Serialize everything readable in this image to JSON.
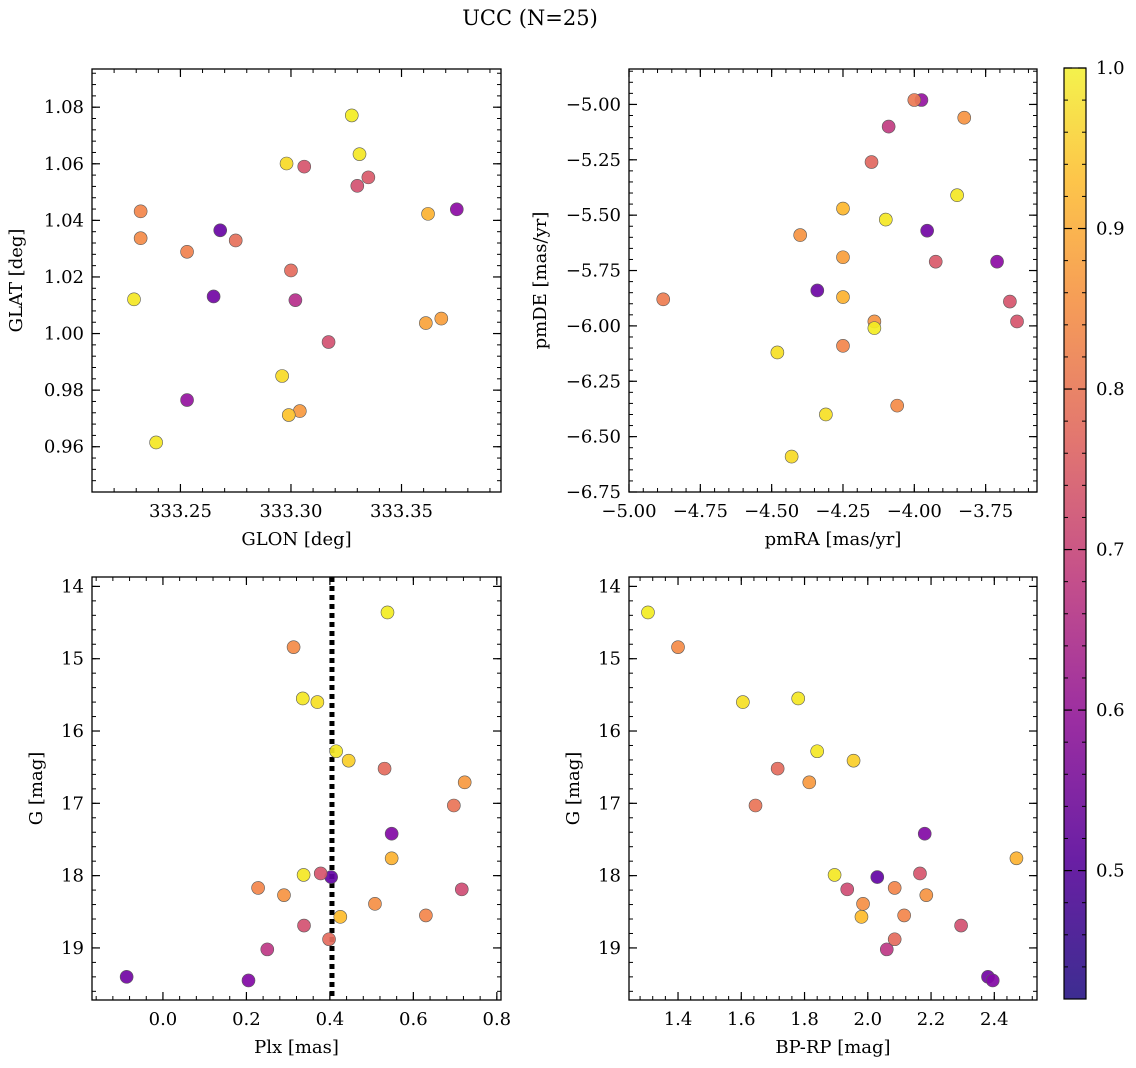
{
  "figure": {
    "title": "UCC (N=25)"
  },
  "colorbar": {
    "cmap": "plasma",
    "vmin": 0.42,
    "vmax": 1.0,
    "ticks": [
      0.5,
      0.6,
      0.7,
      0.8,
      0.9,
      1.0
    ],
    "tick_labels": [
      "0.5",
      "0.6",
      "0.7",
      "0.8",
      "0.9",
      "1.0"
    ]
  },
  "chart_data": [
    {
      "type": "scatter",
      "id": "radec",
      "xlabel": "GLON [deg]",
      "ylabel": "GLAT [deg]",
      "xlim": [
        333.21,
        333.395
      ],
      "ylim": [
        0.944,
        1.0935
      ],
      "xticks": [
        333.25,
        333.3,
        333.35
      ],
      "xtick_labels": [
        "333.25",
        "333.30",
        "333.35"
      ],
      "yticks": [
        0.96,
        0.98,
        1.0,
        1.02,
        1.04,
        1.06,
        1.08
      ],
      "ytick_labels": [
        "0.96",
        "0.98",
        "1.00",
        "1.02",
        "1.04",
        "1.06",
        "1.08"
      ],
      "points": [
        {
          "x": 333.3275,
          "y": 1.0771,
          "c": 0.98
        },
        {
          "x": 333.331,
          "y": 1.0634,
          "c": 0.97
        },
        {
          "x": 333.298,
          "y": 1.0601,
          "c": 0.95
        },
        {
          "x": 333.306,
          "y": 1.059,
          "c": 0.68
        },
        {
          "x": 333.335,
          "y": 1.0552,
          "c": 0.69
        },
        {
          "x": 333.33,
          "y": 1.0522,
          "c": 0.67
        },
        {
          "x": 333.375,
          "y": 1.0439,
          "c": 0.5
        },
        {
          "x": 333.232,
          "y": 1.0432,
          "c": 0.79
        },
        {
          "x": 333.362,
          "y": 1.0423,
          "c": 0.88
        },
        {
          "x": 333.268,
          "y": 1.0365,
          "c": 0.43
        },
        {
          "x": 333.232,
          "y": 1.0337,
          "c": 0.8
        },
        {
          "x": 333.275,
          "y": 1.0329,
          "c": 0.74
        },
        {
          "x": 333.253,
          "y": 1.0289,
          "c": 0.78
        },
        {
          "x": 333.3,
          "y": 1.0223,
          "c": 0.73
        },
        {
          "x": 333.265,
          "y": 1.0131,
          "c": 0.45
        },
        {
          "x": 333.229,
          "y": 1.0121,
          "c": 0.97
        },
        {
          "x": 333.302,
          "y": 1.0118,
          "c": 0.59
        },
        {
          "x": 333.368,
          "y": 1.0053,
          "c": 0.84
        },
        {
          "x": 333.361,
          "y": 1.0037,
          "c": 0.85
        },
        {
          "x": 333.317,
          "y": 0.997,
          "c": 0.67
        },
        {
          "x": 333.296,
          "y": 0.985,
          "c": 0.95
        },
        {
          "x": 333.253,
          "y": 0.9765,
          "c": 0.52
        },
        {
          "x": 333.304,
          "y": 0.9726,
          "c": 0.83
        },
        {
          "x": 333.299,
          "y": 0.9712,
          "c": 0.91
        },
        {
          "x": 333.239,
          "y": 0.9615,
          "c": 0.97
        }
      ]
    },
    {
      "type": "scatter",
      "id": "pm",
      "xlabel": "pmRA [mas/yr]",
      "ylabel": "pmDE [mas/yr]",
      "xlim": [
        -5.0,
        -3.57
      ],
      "ylim": [
        -6.75,
        -4.84
      ],
      "xticks": [
        -5.0,
        -4.75,
        -4.5,
        -4.25,
        -4.0,
        -3.75
      ],
      "xtick_labels": [
        "−5.00",
        "−4.75",
        "−4.50",
        "−4.25",
        "−4.00",
        "−3.75"
      ],
      "yticks": [
        -6.75,
        -6.5,
        -6.25,
        -6.0,
        -5.75,
        -5.5,
        -5.25,
        -5.0
      ],
      "ytick_labels": [
        "−6.75",
        "−6.50",
        "−6.25",
        "−6.00",
        "−5.75",
        "−5.50",
        "−5.25",
        "−5.00"
      ],
      "points": [
        {
          "x": -4.0,
          "y": -4.98,
          "c": 0.76
        },
        {
          "x": -3.975,
          "y": -4.98,
          "c": 0.52
        },
        {
          "x": -3.825,
          "y": -5.06,
          "c": 0.82
        },
        {
          "x": -4.09,
          "y": -5.1,
          "c": 0.62
        },
        {
          "x": -4.15,
          "y": -5.26,
          "c": 0.72
        },
        {
          "x": -3.85,
          "y": -5.41,
          "c": 0.97
        },
        {
          "x": -4.25,
          "y": -5.47,
          "c": 0.89
        },
        {
          "x": -4.1,
          "y": -5.52,
          "c": 0.97
        },
        {
          "x": -3.955,
          "y": -5.57,
          "c": 0.45
        },
        {
          "x": -4.4,
          "y": -5.59,
          "c": 0.82
        },
        {
          "x": -4.25,
          "y": -5.69,
          "c": 0.84
        },
        {
          "x": -3.925,
          "y": -5.71,
          "c": 0.69
        },
        {
          "x": -3.71,
          "y": -5.71,
          "c": 0.5
        },
        {
          "x": -4.34,
          "y": -5.84,
          "c": 0.44
        },
        {
          "x": -4.25,
          "y": -5.87,
          "c": 0.88
        },
        {
          "x": -4.88,
          "y": -5.88,
          "c": 0.77
        },
        {
          "x": -3.665,
          "y": -5.89,
          "c": 0.68
        },
        {
          "x": -3.64,
          "y": -5.98,
          "c": 0.68
        },
        {
          "x": -4.14,
          "y": -5.98,
          "c": 0.82
        },
        {
          "x": -4.14,
          "y": -6.01,
          "c": 0.98
        },
        {
          "x": -4.25,
          "y": -6.09,
          "c": 0.79
        },
        {
          "x": -4.48,
          "y": -6.12,
          "c": 0.96
        },
        {
          "x": -4.06,
          "y": -6.36,
          "c": 0.8
        },
        {
          "x": -4.31,
          "y": -6.4,
          "c": 0.96
        },
        {
          "x": -4.43,
          "y": -6.59,
          "c": 0.95
        }
      ]
    },
    {
      "type": "scatter",
      "id": "plx",
      "xlabel": "Plx [mas]",
      "ylabel": "G [mag]",
      "xlim": [
        -0.17,
        0.81
      ],
      "ylim": [
        19.72,
        13.87
      ],
      "y_inverted": true,
      "vline": 0.405,
      "xticks": [
        0.0,
        0.2,
        0.4,
        0.6,
        0.8
      ],
      "xtick_labels": [
        "0.0",
        "0.2",
        "0.4",
        "0.6",
        "0.8"
      ],
      "yticks": [
        14,
        15,
        16,
        17,
        18,
        19
      ],
      "ytick_labels": [
        "14",
        "15",
        "16",
        "17",
        "18",
        "19"
      ],
      "points": [
        {
          "x": 0.538,
          "y": 14.36,
          "c": 0.98
        },
        {
          "x": 0.313,
          "y": 14.84,
          "c": 0.8
        },
        {
          "x": 0.335,
          "y": 15.55,
          "c": 0.97
        },
        {
          "x": 0.37,
          "y": 15.6,
          "c": 0.96
        },
        {
          "x": 0.415,
          "y": 16.28,
          "c": 0.97
        },
        {
          "x": 0.445,
          "y": 16.41,
          "c": 0.93
        },
        {
          "x": 0.531,
          "y": 16.52,
          "c": 0.73
        },
        {
          "x": 0.723,
          "y": 16.71,
          "c": 0.83
        },
        {
          "x": 0.697,
          "y": 17.03,
          "c": 0.75
        },
        {
          "x": 0.548,
          "y": 17.42,
          "c": 0.48
        },
        {
          "x": 0.548,
          "y": 17.76,
          "c": 0.88
        },
        {
          "x": 0.337,
          "y": 17.99,
          "c": 0.97
        },
        {
          "x": 0.378,
          "y": 17.97,
          "c": 0.68
        },
        {
          "x": 0.403,
          "y": 18.02,
          "c": 0.42
        },
        {
          "x": 0.228,
          "y": 18.17,
          "c": 0.79
        },
        {
          "x": 0.716,
          "y": 18.19,
          "c": 0.66
        },
        {
          "x": 0.29,
          "y": 18.27,
          "c": 0.82
        },
        {
          "x": 0.508,
          "y": 18.39,
          "c": 0.81
        },
        {
          "x": 0.63,
          "y": 18.55,
          "c": 0.79
        },
        {
          "x": 0.425,
          "y": 18.57,
          "c": 0.9
        },
        {
          "x": 0.338,
          "y": 18.69,
          "c": 0.67
        },
        {
          "x": 0.398,
          "y": 18.88,
          "c": 0.73
        },
        {
          "x": 0.25,
          "y": 19.02,
          "c": 0.61
        },
        {
          "x": -0.087,
          "y": 19.4,
          "c": 0.45
        },
        {
          "x": 0.205,
          "y": 19.45,
          "c": 0.48
        }
      ]
    },
    {
      "type": "scatter",
      "id": "cmd",
      "xlabel": "BP-RP [mag]",
      "ylabel": "G [mag]",
      "xlim": [
        1.245,
        2.535
      ],
      "ylim": [
        19.72,
        13.87
      ],
      "y_inverted": true,
      "xticks": [
        1.4,
        1.6,
        1.8,
        2.0,
        2.2,
        2.4
      ],
      "xtick_labels": [
        "1.4",
        "1.6",
        "1.8",
        "2.0",
        "2.2",
        "2.4"
      ],
      "yticks": [
        14,
        15,
        16,
        17,
        18,
        19
      ],
      "ytick_labels": [
        "14",
        "15",
        "16",
        "17",
        "18",
        "19"
      ],
      "points": [
        {
          "x": 1.305,
          "y": 14.36,
          "c": 0.98
        },
        {
          "x": 1.4,
          "y": 14.84,
          "c": 0.8
        },
        {
          "x": 1.605,
          "y": 15.6,
          "c": 0.96
        },
        {
          "x": 1.78,
          "y": 15.55,
          "c": 0.97
        },
        {
          "x": 1.84,
          "y": 16.28,
          "c": 0.97
        },
        {
          "x": 1.955,
          "y": 16.41,
          "c": 0.93
        },
        {
          "x": 1.715,
          "y": 16.52,
          "c": 0.73
        },
        {
          "x": 1.815,
          "y": 16.71,
          "c": 0.83
        },
        {
          "x": 1.645,
          "y": 17.03,
          "c": 0.75
        },
        {
          "x": 2.18,
          "y": 17.42,
          "c": 0.48
        },
        {
          "x": 2.47,
          "y": 17.76,
          "c": 0.88
        },
        {
          "x": 1.895,
          "y": 17.99,
          "c": 0.97
        },
        {
          "x": 2.165,
          "y": 17.97,
          "c": 0.68
        },
        {
          "x": 2.03,
          "y": 18.02,
          "c": 0.42
        },
        {
          "x": 2.085,
          "y": 18.17,
          "c": 0.79
        },
        {
          "x": 1.935,
          "y": 18.19,
          "c": 0.66
        },
        {
          "x": 2.185,
          "y": 18.27,
          "c": 0.82
        },
        {
          "x": 1.985,
          "y": 18.39,
          "c": 0.81
        },
        {
          "x": 2.115,
          "y": 18.55,
          "c": 0.79
        },
        {
          "x": 1.98,
          "y": 18.57,
          "c": 0.9
        },
        {
          "x": 2.295,
          "y": 18.69,
          "c": 0.67
        },
        {
          "x": 2.085,
          "y": 18.88,
          "c": 0.73
        },
        {
          "x": 2.06,
          "y": 19.02,
          "c": 0.61
        },
        {
          "x": 2.38,
          "y": 19.4,
          "c": 0.45
        },
        {
          "x": 2.395,
          "y": 19.45,
          "c": 0.48
        }
      ]
    }
  ]
}
